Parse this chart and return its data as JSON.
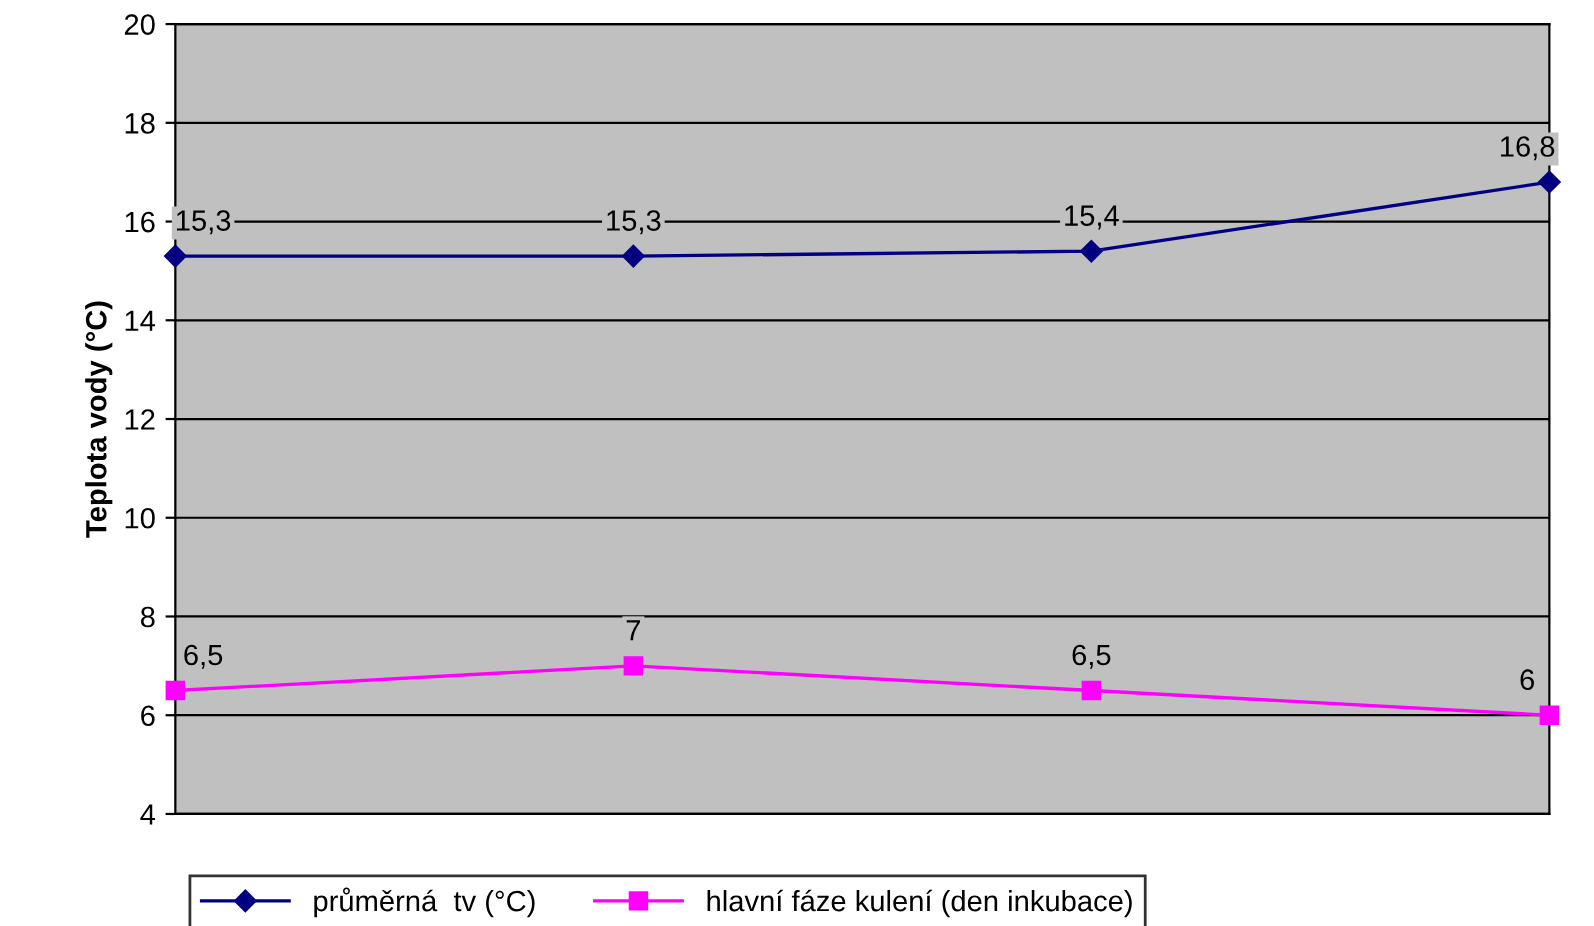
{
  "chart_data": {
    "type": "line",
    "ylabel": "Teplota vody (°C)",
    "categories": [
      null,
      null,
      null,
      null
    ],
    "series": [
      {
        "name": "průměrná  tv (°C)",
        "color": "#000080",
        "marker": "diamond",
        "values": [
          15.3,
          15.3,
          15.4,
          16.8
        ],
        "value_labels": [
          "15,3",
          "15,3",
          "15,4",
          "16,8"
        ]
      },
      {
        "name": "hlavní fáze kulení (den inkubace)",
        "color": "#ff00ff",
        "marker": "square",
        "values": [
          6.5,
          7,
          6.5,
          6
        ],
        "value_labels": [
          "6,5",
          "7",
          "6,5",
          "6"
        ]
      }
    ],
    "ylim": [
      4,
      20
    ],
    "yticks": [
      4,
      6,
      8,
      10,
      12,
      14,
      16,
      18,
      20
    ],
    "grid": "y",
    "legend": "bottom"
  }
}
